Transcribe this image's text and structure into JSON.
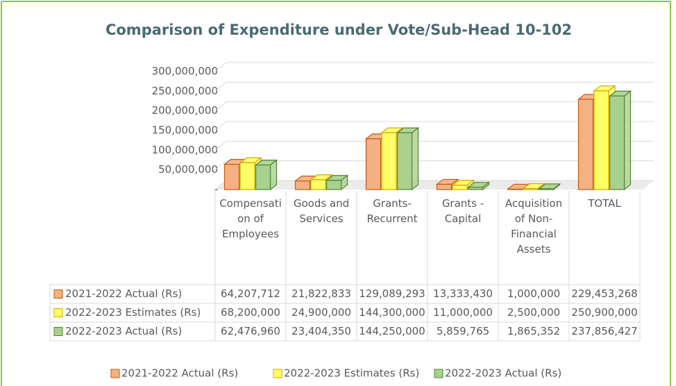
{
  "chart_data": {
    "type": "bar3d",
    "title": "Comparison of Expenditure under Vote/Sub-Head 10-102",
    "categories": [
      "Compensation of Employees",
      "Goods and Services",
      "Grants-Recurrent",
      "Grants - Capital",
      "Acquisition of Non-Financial Assets",
      "TOTAL"
    ],
    "series": [
      {
        "name": "2021-2022 Actual (Rs)",
        "color": "#f4b183",
        "edge": "#c55a11",
        "values": [
          64207712,
          21822833,
          129089293,
          13333430,
          1000000,
          229453268
        ],
        "value_labels": [
          "64,207,712",
          "21,822,833",
          "129,089,293",
          "13,333,430",
          "1,000,000",
          "229,453,268"
        ]
      },
      {
        "name": "2022-2023 Estimates (Rs)",
        "color": "#ffff66",
        "edge": "#d9a400",
        "values": [
          68200000,
          24900000,
          144300000,
          11000000,
          2500000,
          250900000
        ],
        "value_labels": [
          "68,200,000",
          "24,900,000",
          "144,300,000",
          "11,000,000",
          "2,500,000",
          "250,900,000"
        ]
      },
      {
        "name": "2022-2023 Actual (Rs)",
        "color": "#a9d18e",
        "edge": "#548235",
        "values": [
          62476960,
          23404350,
          144250000,
          5859765,
          1865352,
          237856427
        ],
        "value_labels": [
          "62,476,960",
          "23,404,350",
          "144,250,000",
          "5,859,765",
          "1,865,352",
          "237,856,427"
        ]
      }
    ],
    "ylim": [
      0,
      300000000
    ],
    "yticks": [
      {
        "value": 0,
        "label": "-"
      },
      {
        "value": 50000000,
        "label": "50,000,000"
      },
      {
        "value": 100000000,
        "label": "100,000,000"
      },
      {
        "value": 150000000,
        "label": "150,000,000"
      },
      {
        "value": 200000000,
        "label": "200,000,000"
      },
      {
        "value": 250000000,
        "label": "250,000,000"
      },
      {
        "value": 300000000,
        "label": "300,000,000"
      }
    ],
    "grid": true,
    "legend": "bottom"
  }
}
